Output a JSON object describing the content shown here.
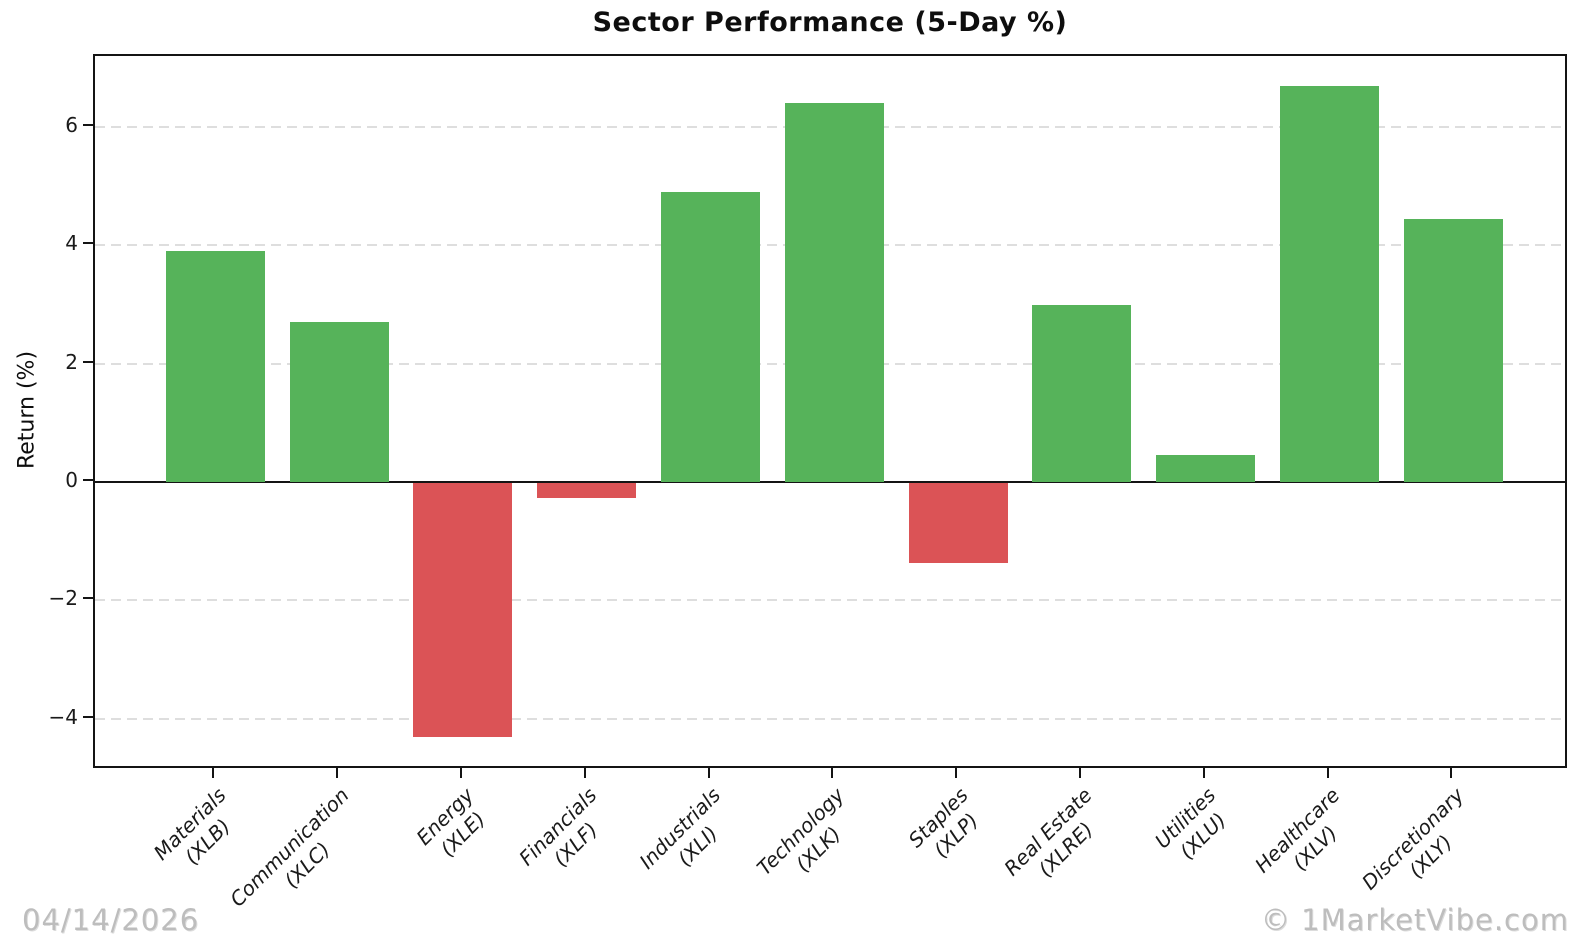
{
  "watermark": {
    "date": "04/14/2026",
    "credit": "© 1MarketVibe.com"
  },
  "chart_data": {
    "type": "bar",
    "title": "Sector Performance (5-Day %)",
    "xlabel": "",
    "ylabel": "Return (%)",
    "categories": [
      {
        "sector": "Materials",
        "ticker": "(XLB)"
      },
      {
        "sector": "Communication",
        "ticker": "(XLC)"
      },
      {
        "sector": "Energy",
        "ticker": "(XLE)"
      },
      {
        "sector": "Financials",
        "ticker": "(XLF)"
      },
      {
        "sector": "Industrials",
        "ticker": "(XLI)"
      },
      {
        "sector": "Technology",
        "ticker": "(XLK)"
      },
      {
        "sector": "Staples",
        "ticker": "(XLP)"
      },
      {
        "sector": "Real Estate",
        "ticker": "(XLRE)"
      },
      {
        "sector": "Utilities",
        "ticker": "(XLU)"
      },
      {
        "sector": "Healthcare",
        "ticker": "(XLV)"
      },
      {
        "sector": "Discretionary",
        "ticker": "(XLY)"
      }
    ],
    "values": [
      3.9,
      2.7,
      -4.3,
      -0.25,
      4.9,
      6.4,
      -1.35,
      3.0,
      0.45,
      6.7,
      4.45
    ],
    "yticks": [
      6,
      4,
      2,
      0,
      -2,
      -4
    ],
    "ylim": [
      -4.87,
      7.2
    ],
    "grid": "horizontal-dashed",
    "legend": "none",
    "colors": {
      "positive": "#56b35a",
      "negative": "#db5356",
      "gridline": "#dedede",
      "axis": "#141414",
      "watermark": "#bdbdbd"
    }
  }
}
